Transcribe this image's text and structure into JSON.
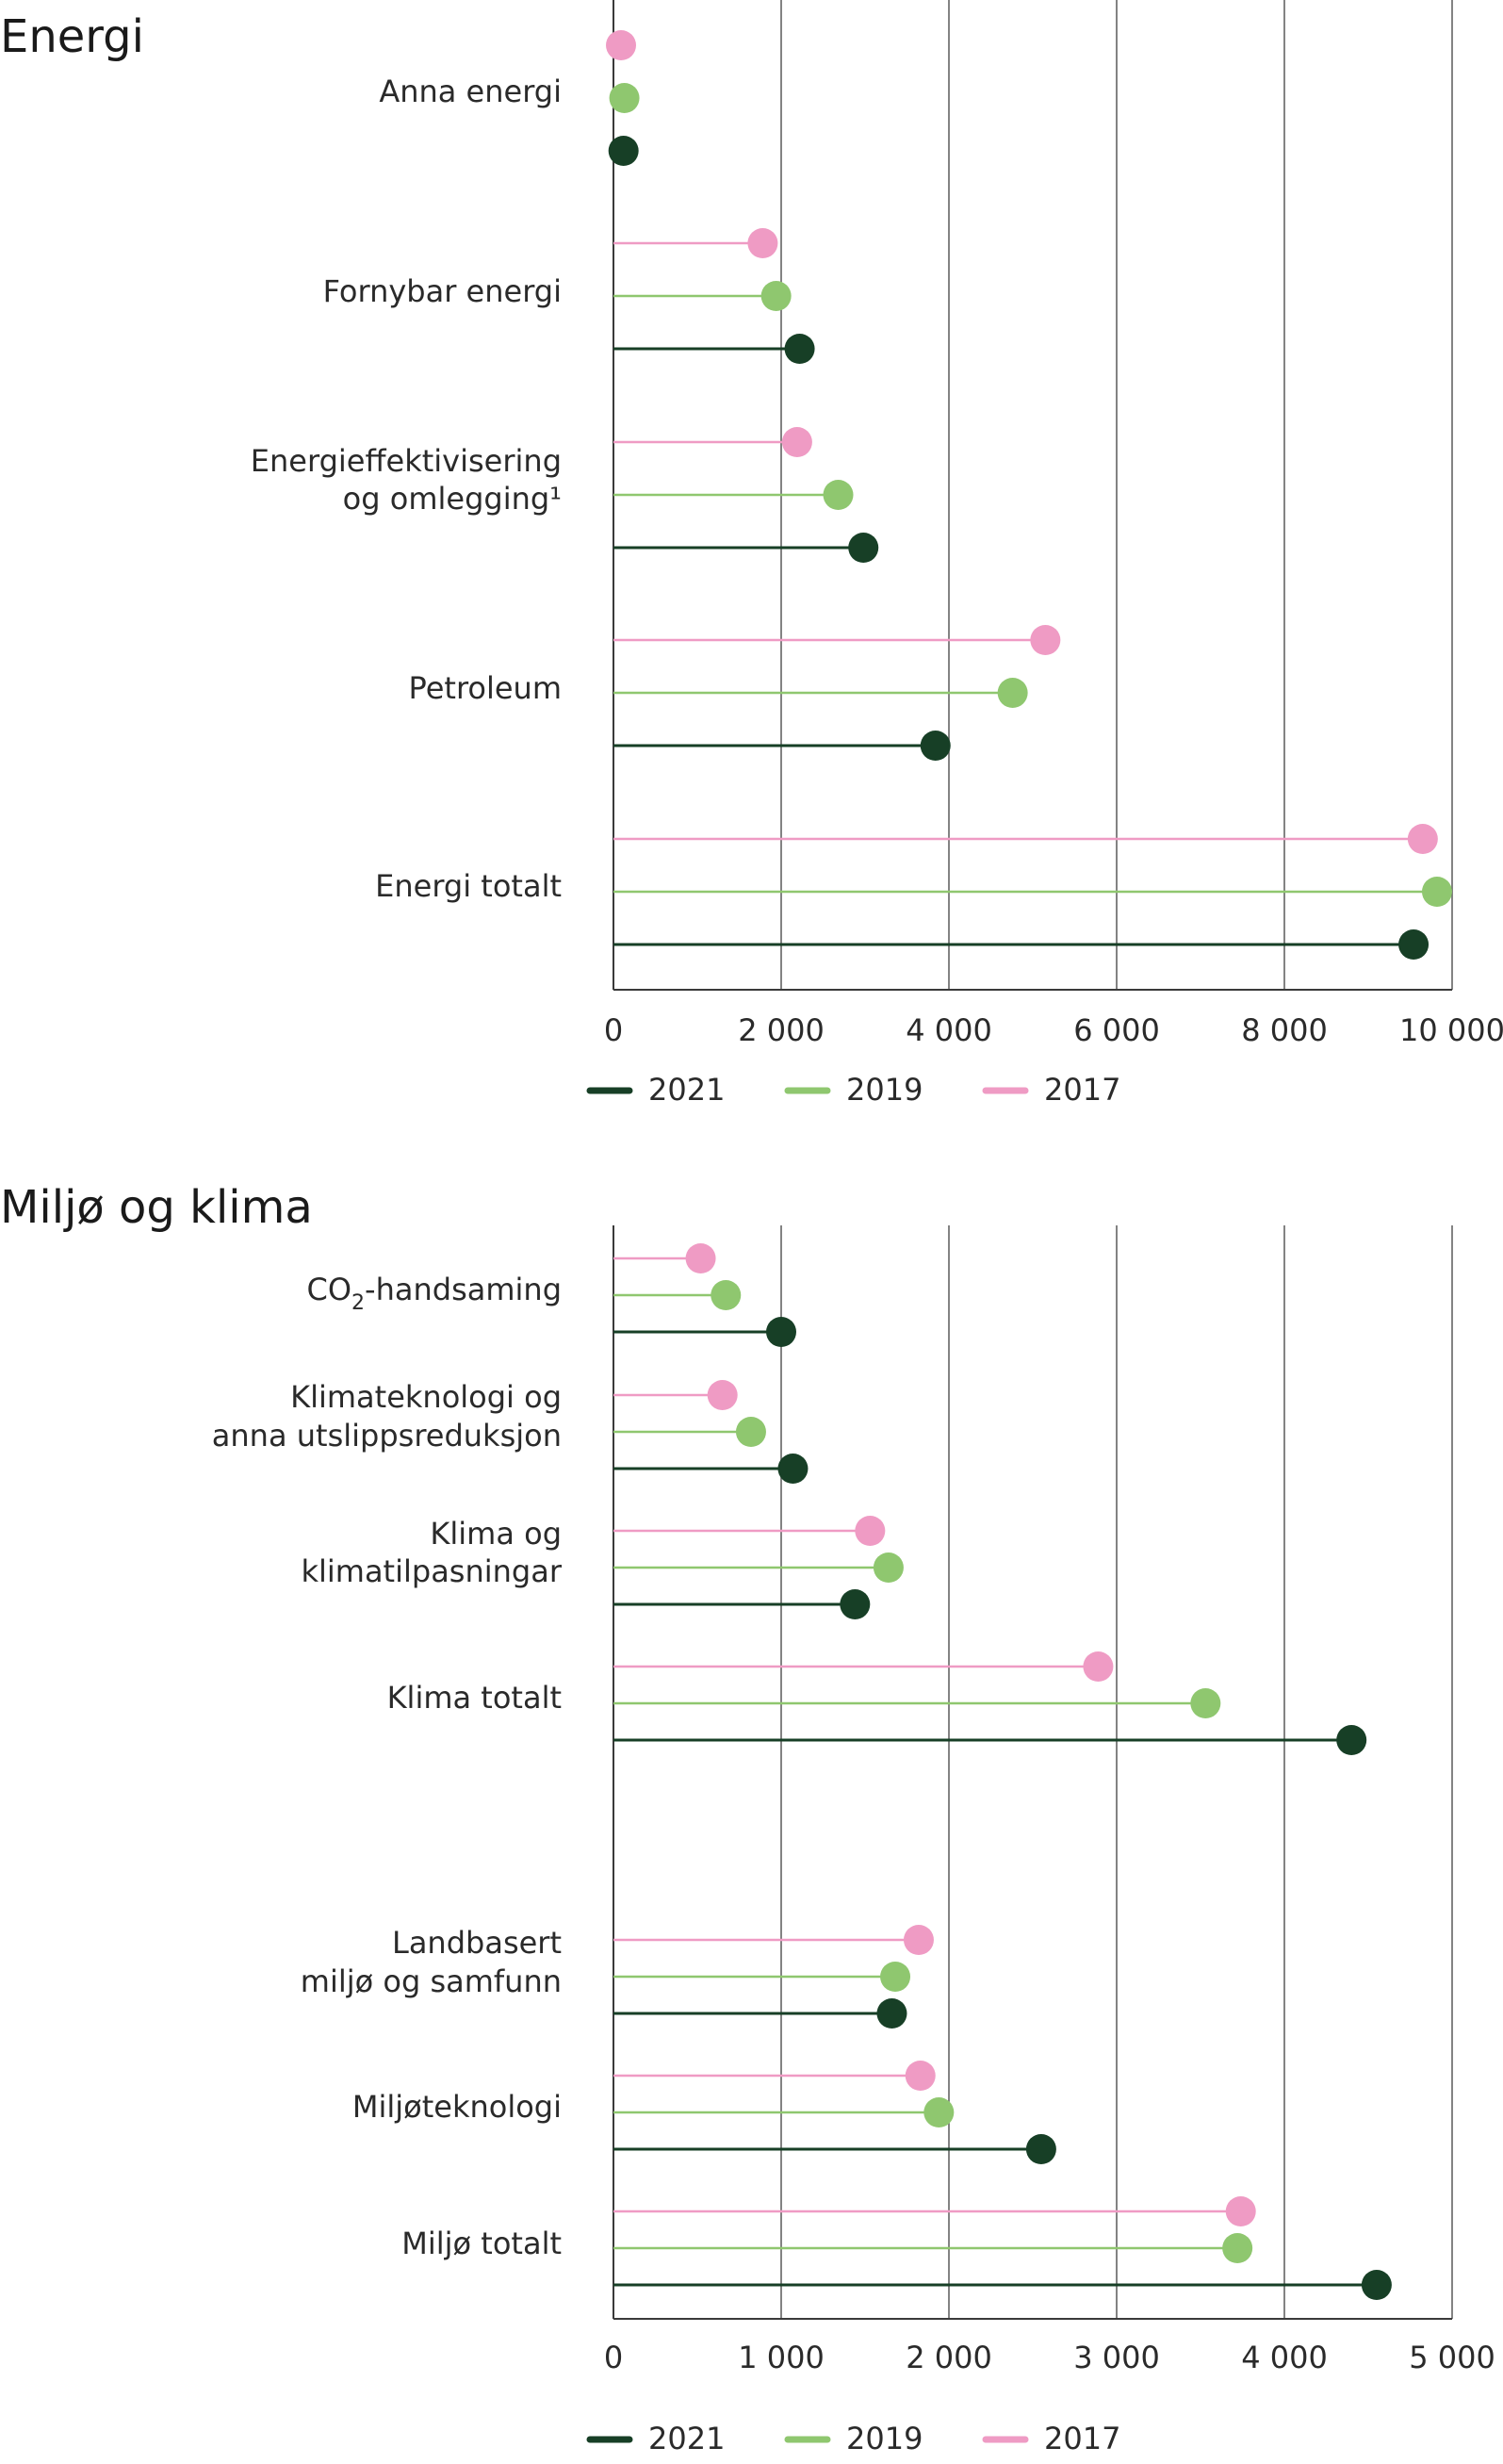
{
  "colors": {
    "2021": "#173f26",
    "2019": "#8fc76f",
    "2017": "#ef9bc4"
  },
  "chart_data": [
    {
      "type": "lollipop",
      "title": "Energi",
      "xlim": [
        0,
        10000
      ],
      "ticks": [
        0,
        2000,
        4000,
        6000,
        8000,
        10000
      ],
      "tick_labels": [
        "0",
        "2 000",
        "4 000",
        "6 000",
        "8 000",
        "10 000"
      ],
      "series_names": [
        "2017",
        "2019",
        "2021"
      ],
      "categories": [
        {
          "label": [
            "Anna energi"
          ],
          "values": {
            "2017": 90,
            "2019": 130,
            "2021": 120
          }
        },
        {
          "label": [
            "Fornybar energi"
          ],
          "values": {
            "2017": 1780,
            "2019": 1940,
            "2021": 2220
          }
        },
        {
          "label": [
            "Energieffektivisering",
            "og omlegging¹"
          ],
          "values": {
            "2017": 2190,
            "2019": 2680,
            "2021": 2980
          }
        },
        {
          "label": [
            "Petroleum"
          ],
          "values": {
            "2017": 5150,
            "2019": 4760,
            "2021": 3840
          }
        },
        {
          "label": [
            "Energi totalt"
          ],
          "values": {
            "2017": 9650,
            "2019": 9820,
            "2021": 9540
          }
        }
      ],
      "legend": [
        "2021",
        "2019",
        "2017"
      ]
    },
    {
      "type": "lollipop",
      "title": "Miljø og klima",
      "xlim": [
        0,
        5000
      ],
      "ticks": [
        0,
        1000,
        2000,
        3000,
        4000,
        5000
      ],
      "tick_labels": [
        "0",
        "1 000",
        "2 000",
        "3 000",
        "4 000",
        "5 000"
      ],
      "series_names": [
        "2017",
        "2019",
        "2021"
      ],
      "categories": [
        {
          "label": [
            "CO₂-handsaming"
          ],
          "values": {
            "2017": 520,
            "2019": 670,
            "2021": 1000
          }
        },
        {
          "label": [
            "Klimateknologi og",
            "anna utslippsreduksjon"
          ],
          "values": {
            "2017": 650,
            "2019": 820,
            "2021": 1070
          }
        },
        {
          "label": [
            "Klima og",
            "klimatilpasningar"
          ],
          "values": {
            "2017": 1530,
            "2019": 1640,
            "2021": 1440
          }
        },
        {
          "label": [
            "Klima totalt"
          ],
          "values": {
            "2017": 2890,
            "2019": 3530,
            "2021": 4400
          }
        },
        {
          "label": [
            "Landbasert",
            "miljø og samfunn"
          ],
          "values": {
            "2017": 1820,
            "2019": 1680,
            "2021": 1660
          }
        },
        {
          "label": [
            "Miljøteknologi"
          ],
          "values": {
            "2017": 1830,
            "2019": 1940,
            "2021": 2550
          }
        },
        {
          "label": [
            "Miljø totalt"
          ],
          "values": {
            "2017": 3740,
            "2019": 3720,
            "2021": 4550
          }
        }
      ],
      "legend": [
        "2021",
        "2019",
        "2017"
      ]
    }
  ]
}
